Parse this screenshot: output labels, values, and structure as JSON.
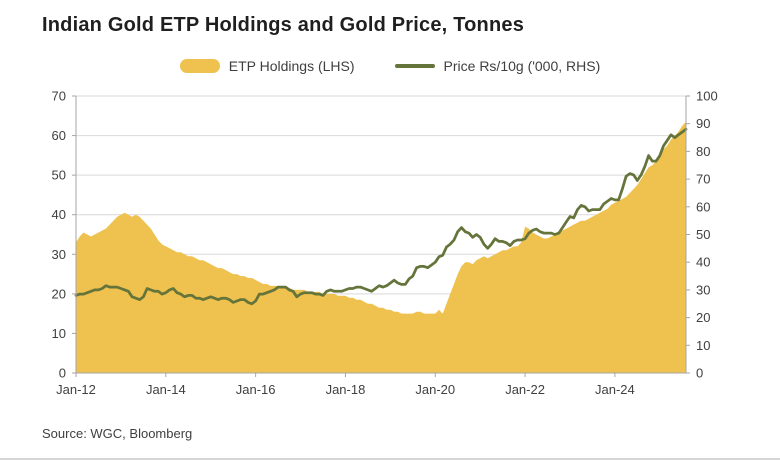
{
  "title": "Indian Gold ETP Holdings and Gold Price, Tonnes",
  "source": "Source: WGC, Bloomberg",
  "legend": {
    "etp": "ETP Holdings (LHS)",
    "price": "Price Rs/10g ('000, RHS)"
  },
  "colors": {
    "area": "#efc14e",
    "line": "#65743a",
    "grid": "#d9d9d9",
    "axis": "#a6a6a6",
    "tick_text": "#404040"
  },
  "chart_data": {
    "type": "area",
    "subtype": "area-plus-line",
    "title": "Indian Gold ETP Holdings and Gold Price, Tonnes",
    "x_start": "Jan-12",
    "x_frequency": "monthly",
    "x_ticks": [
      "Jan-12",
      "Jan-14",
      "Jan-16",
      "Jan-18",
      "Jan-20",
      "Jan-22",
      "Jan-24"
    ],
    "x_tick_indices": [
      0,
      24,
      48,
      72,
      96,
      120,
      144
    ],
    "left_axis": {
      "min": 0,
      "max": 70,
      "step": 10
    },
    "right_axis": {
      "min": 0,
      "max": 100,
      "step": 10
    },
    "grid": "horizontal",
    "legend_position": "top",
    "series": [
      {
        "name": "ETP Holdings (LHS)",
        "type": "area",
        "axis": "left",
        "color": "#efc14e",
        "values": [
          33,
          34.5,
          35.5,
          35,
          34.5,
          35,
          35.5,
          36,
          36.5,
          37.5,
          38.5,
          39.5,
          40,
          40.5,
          40,
          39.5,
          40,
          39.5,
          38.5,
          37.5,
          36.5,
          35,
          33.5,
          32.5,
          32,
          31.5,
          31,
          30.5,
          30.5,
          30,
          29.5,
          29.5,
          29,
          28.5,
          28.5,
          28,
          27.5,
          27,
          26.5,
          26.5,
          26,
          25.5,
          25,
          25,
          24.5,
          24.5,
          24,
          24,
          23.5,
          23,
          22.5,
          22.5,
          22,
          22,
          22,
          21.5,
          21.5,
          21.5,
          21,
          21,
          21,
          21,
          20.5,
          20.5,
          20.5,
          20.5,
          20,
          20,
          20,
          20,
          19.5,
          19.5,
          19.5,
          19,
          19,
          18.5,
          18.5,
          18,
          17.5,
          17.5,
          17,
          16.5,
          16.5,
          16,
          16,
          15.5,
          15.5,
          15,
          15,
          15,
          15,
          15.5,
          15.5,
          15,
          15,
          15,
          15,
          16,
          15,
          17.5,
          20,
          22.5,
          25,
          27,
          28,
          28,
          27.5,
          28.5,
          29,
          29.5,
          29,
          29.5,
          30,
          30.5,
          31,
          31,
          31.5,
          32,
          32,
          33,
          37,
          36.5,
          35.5,
          35,
          34.5,
          34,
          34,
          34.5,
          35,
          35.5,
          36,
          36.5,
          37,
          37.5,
          38,
          38.5,
          38.5,
          39,
          39.5,
          40,
          40.5,
          41,
          41.5,
          42.5,
          43,
          43.5,
          44,
          44.5,
          45.5,
          46.5,
          47.5,
          49,
          50.5,
          52,
          52.5,
          53.5,
          55,
          56.5,
          57.5,
          59,
          60,
          61,
          62.5,
          63.5
        ]
      },
      {
        "name": "Price Rs/10g ('000, RHS)",
        "type": "line",
        "axis": "right",
        "color": "#65743a",
        "values": [
          28,
          28.5,
          28.5,
          29,
          29.5,
          30,
          30,
          30.5,
          31.5,
          31,
          31,
          31,
          30.5,
          30,
          29.5,
          27.5,
          27,
          26.5,
          27.5,
          30.5,
          30,
          29.5,
          29.5,
          28.5,
          29,
          30,
          30.5,
          29,
          28.5,
          27.5,
          28,
          28,
          27,
          27,
          26.5,
          27,
          27.5,
          27,
          26.5,
          27,
          27,
          26.5,
          25.5,
          26,
          26.5,
          26.5,
          25.5,
          25,
          26,
          28.5,
          28.5,
          29,
          29.5,
          30,
          31,
          31,
          31,
          30,
          29.5,
          27.5,
          28.5,
          29,
          29,
          29,
          28.5,
          28.5,
          28,
          29.5,
          30,
          29.5,
          29.5,
          29.5,
          30,
          30.5,
          30.5,
          31,
          31,
          30.5,
          30,
          29.5,
          30.5,
          31.5,
          31,
          31.5,
          32.5,
          33.5,
          32.5,
          32,
          32,
          34,
          35,
          38,
          38.5,
          38.5,
          38,
          39,
          40,
          42,
          42.5,
          45.5,
          46.5,
          48,
          51,
          52.5,
          51,
          50.5,
          49,
          50,
          49,
          46.5,
          45,
          46.5,
          48.5,
          47.5,
          47.5,
          47,
          46,
          47.5,
          48,
          48,
          48.5,
          50.5,
          51.5,
          52,
          51,
          50.5,
          50.5,
          50.5,
          50,
          50.5,
          52.5,
          54.5,
          56.5,
          56,
          59,
          60.5,
          60,
          58.5,
          59,
          59,
          59,
          61,
          62,
          63,
          62.5,
          62.5,
          66.5,
          71,
          72,
          71.5,
          69.5,
          71.5,
          74.5,
          78.5,
          76.5,
          76.5,
          78.5,
          82,
          84,
          86,
          85,
          86,
          87,
          88
        ]
      }
    ]
  }
}
